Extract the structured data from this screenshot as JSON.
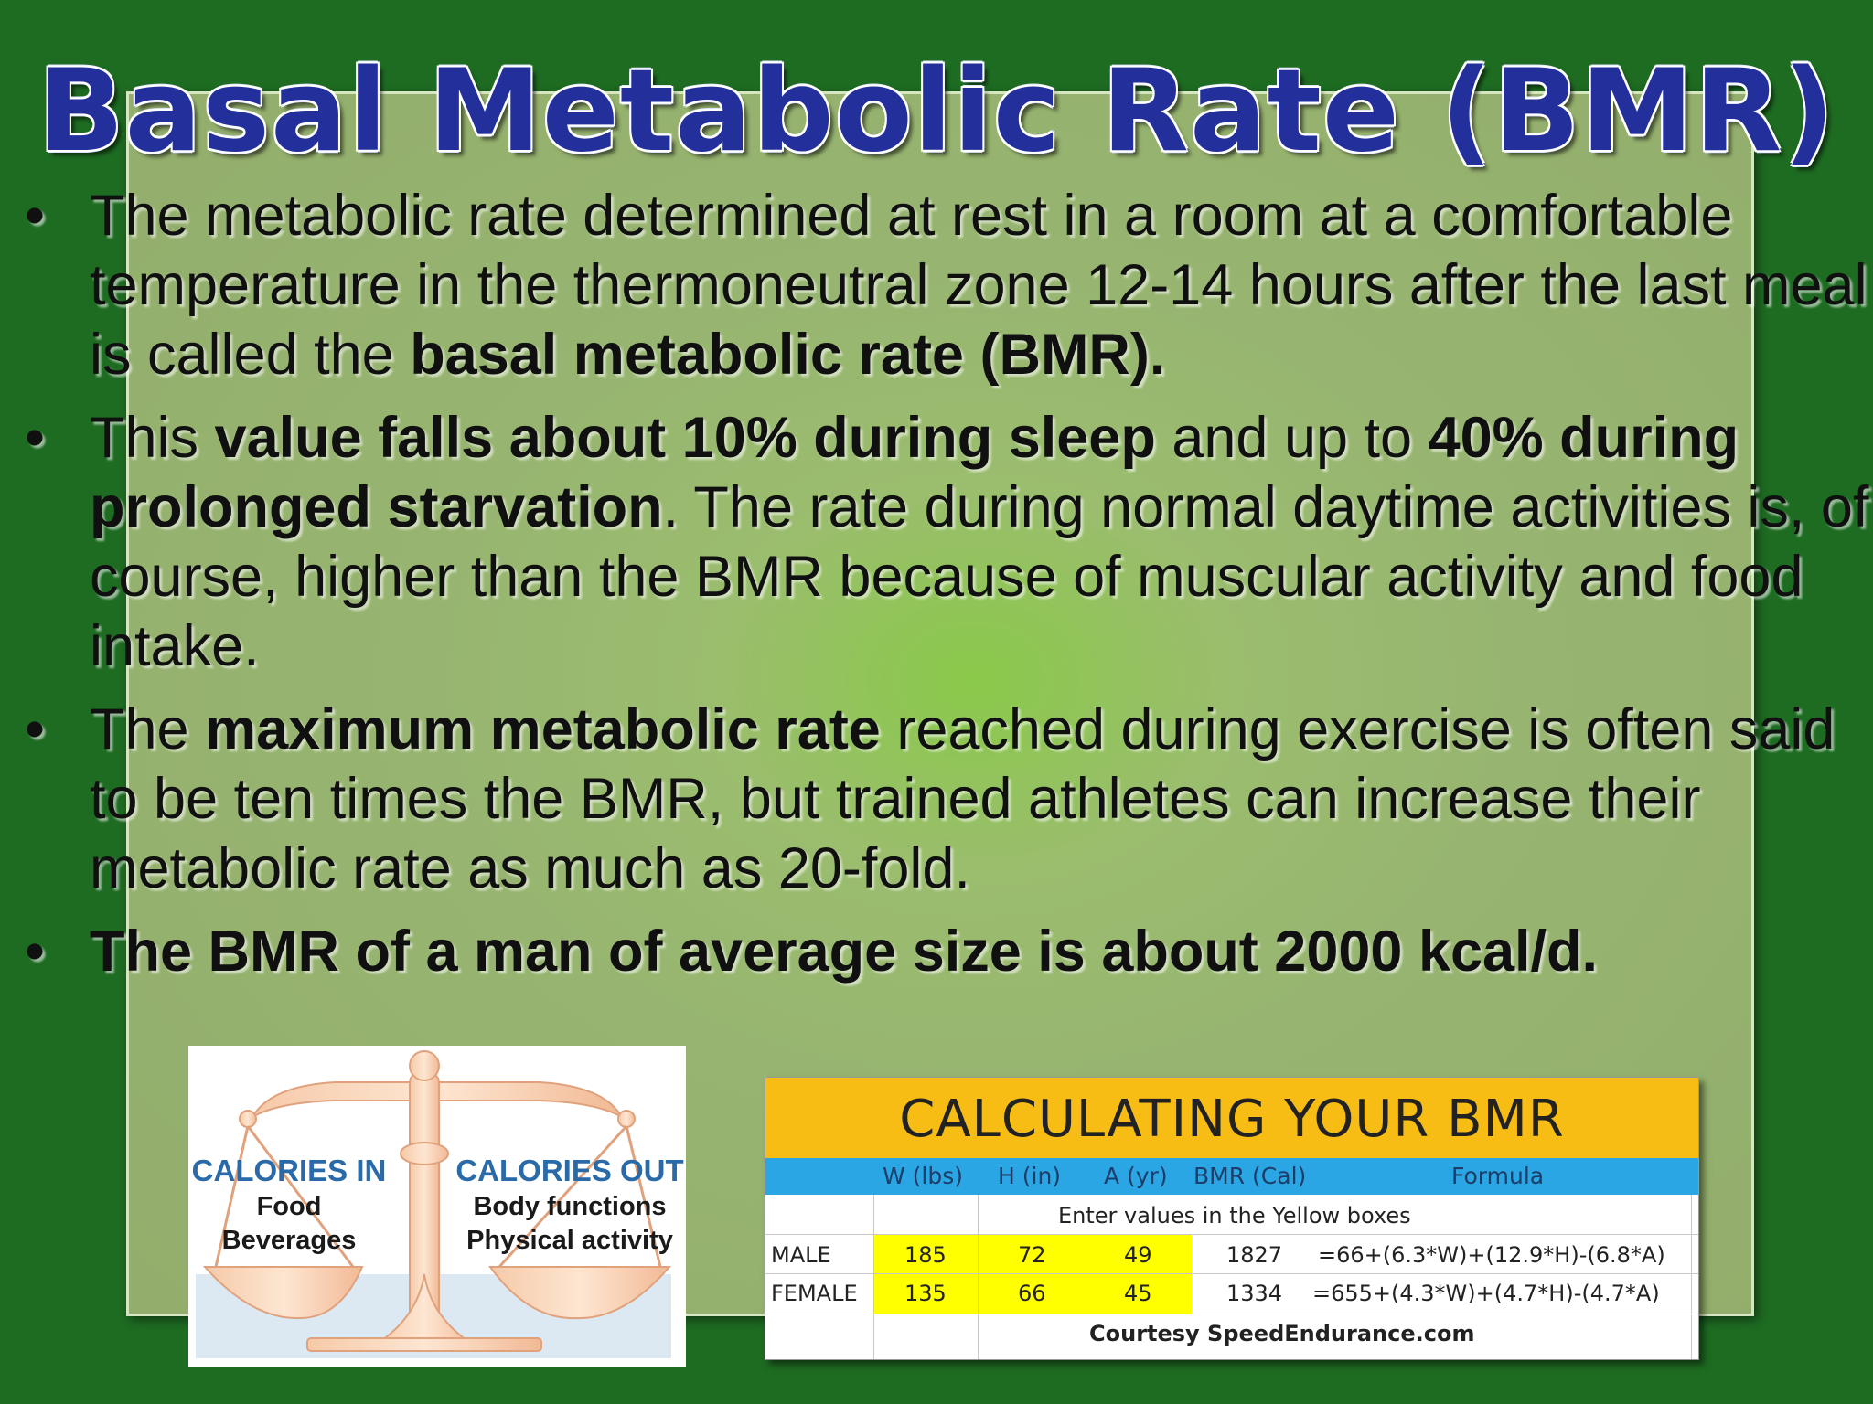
{
  "title": "Basal Metabolic Rate (BMR)",
  "bullet_char": "•",
  "bullets": [
    {
      "parts": [
        {
          "t": "The metabolic rate determined at rest in a room at a comfortable temperature in the thermoneutral zone 12-14 hours after the last meal is called the "
        },
        {
          "t": "basal metabolic rate (BMR).",
          "b": true
        }
      ]
    },
    {
      "parts": [
        {
          "t": "This "
        },
        {
          "t": "value falls about 10% during sleep",
          "b": true
        },
        {
          "t": " and up to "
        },
        {
          "t": "40% during prolonged starvation",
          "b": true
        },
        {
          "t": ". The rate during normal daytime activities is, of course, higher than the BMR because of muscular activity and food intake."
        }
      ]
    },
    {
      "parts": [
        {
          "t": "The "
        },
        {
          "t": "maximum metabolic rate",
          "b": true
        },
        {
          "t": " reached during exercise is often said to be ten times the BMR, but trained athletes can increase their metabolic rate as much as 20-fold."
        }
      ]
    },
    {
      "parts": [
        {
          "t": "The BMR of a man of average size is about 2000 kcal/d.",
          "b": true
        }
      ]
    }
  ],
  "scale_image": {
    "left_title": "CALORIES IN",
    "left_line1": "Food",
    "left_line2": "Beverages",
    "right_title": "CALORIES OUT",
    "right_line1": "Body functions",
    "right_line2": "Physical activity",
    "title_color": "#2a6aa8"
  },
  "bmr_table": {
    "title": "CALCULATING YOUR BMR",
    "header_color": "#f7bd14",
    "columns_color": "#29a6e3",
    "input_color": "#ffff00",
    "columns": [
      "W (lbs)",
      "H (in)",
      "A (yr)",
      "BMR (Cal)",
      "Formula"
    ],
    "instruction": "Enter values in the Yellow boxes",
    "male": {
      "label": "MALE",
      "w": "185",
      "h": "72",
      "a": "49",
      "bmr": "1827",
      "formula": "=66+(6.3*W)+(12.9*H)-(6.8*A)"
    },
    "female": {
      "label": "FEMALE",
      "w": "135",
      "h": "66",
      "a": "45",
      "bmr": "1334",
      "formula": "=655+(4.3*W)+(4.7*H)-(4.7*A)"
    },
    "courtesy": "Courtesy SpeedEndurance.com"
  }
}
